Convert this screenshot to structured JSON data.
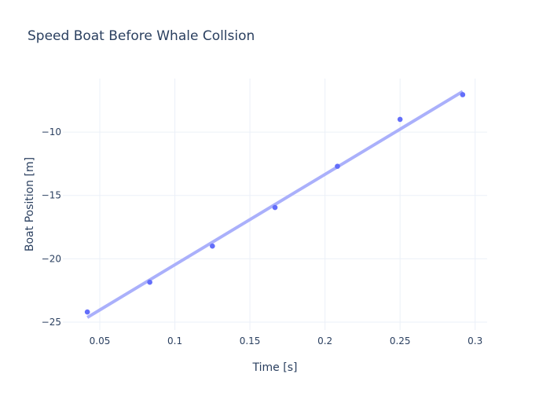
{
  "chart_data": {
    "type": "scatter",
    "title": "Speed Boat Before Whale Collsion",
    "xlabel": "Time [s]",
    "ylabel": "Boat Position [m]",
    "xlim": [
      0.0254,
      0.308
    ],
    "ylim": [
      -25.62,
      -5.78
    ],
    "xticks": [
      0.05,
      0.1,
      0.15,
      0.2,
      0.25,
      0.3
    ],
    "xtick_labels": [
      "0.05",
      "0.1",
      "0.15",
      "0.2",
      "0.25",
      "0.3"
    ],
    "yticks": [
      -10,
      -15,
      -20,
      -25
    ],
    "ytick_labels": [
      "−10",
      "−15",
      "−20",
      "−25"
    ],
    "grid": true,
    "series": [
      {
        "mode": "markers",
        "color": "#636efa",
        "x": [
          0.0417,
          0.0833,
          0.125,
          0.1667,
          0.2083,
          0.25,
          0.2917
        ],
        "y": [
          -24.2,
          -21.85,
          -19.0,
          -15.95,
          -12.7,
          -9.0,
          -7.05
        ]
      },
      {
        "mode": "line",
        "color": "#aab0fb",
        "x": [
          0.0417,
          0.2917
        ],
        "y": [
          -24.63,
          -6.8
        ]
      }
    ]
  }
}
